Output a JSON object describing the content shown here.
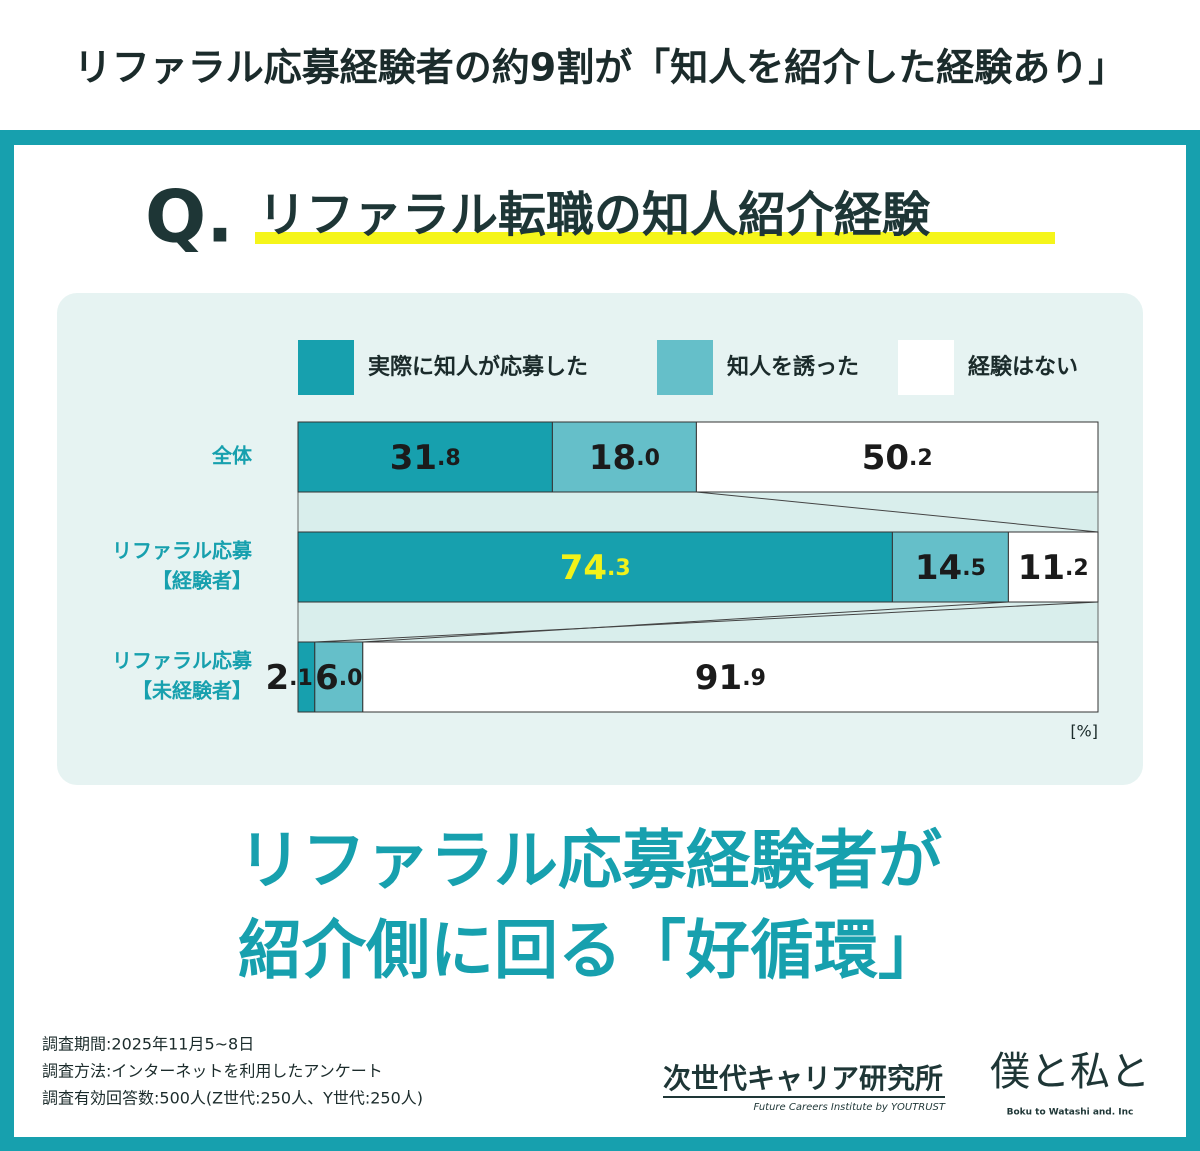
{
  "header_title": "リファラル応募経験者の約9割が「知人を紹介した経験あり」",
  "question_mark": "Q.",
  "question": "リファラル転職の知人紹介経験",
  "chart_data": {
    "type": "bar",
    "orientation": "horizontal",
    "stacked": true,
    "categories": [
      [
        "全体"
      ],
      [
        "リファラル応募",
        "【経験者】"
      ],
      [
        "リファラル応募",
        "【未経験者】"
      ]
    ],
    "series": [
      {
        "name": "実際に知人が応募した",
        "color": "#17a0ae",
        "values": [
          31.8,
          74.3,
          2.1
        ],
        "value_labels": [
          "31.8",
          "74.3",
          "2.1"
        ]
      },
      {
        "name": "知人を誘った",
        "color": "#65bfc9",
        "values": [
          18.0,
          14.5,
          6.0
        ],
        "value_labels": [
          "18.0",
          "14.5",
          "6.0"
        ]
      },
      {
        "name": "経験はない",
        "color": "#ffffff",
        "values": [
          50.2,
          11.2,
          91.9
        ],
        "value_labels": [
          "50.2",
          "11.2",
          "91.9"
        ]
      }
    ],
    "highlight": {
      "series": 0,
      "index": 1,
      "color": "#f2f21a"
    },
    "xlim": [
      0,
      100
    ],
    "unit_label": "[%]"
  },
  "headline": [
    "リファラル応募経験者が",
    "紹介側に回る「好循環」"
  ],
  "notes": [
    "調査期間:2025年11月5~8日",
    "調査方法:インターネットを利用したアンケート",
    "調査有効回答数:500人(Z世代:250人、Y世代:250人)"
  ],
  "logos": {
    "institute": "次世代キャリア研究所",
    "institute_sub": "Future Careers Institute by YOUTRUST",
    "company": "僕と私と",
    "company_sub": "Boku to Watashi and. Inc"
  }
}
